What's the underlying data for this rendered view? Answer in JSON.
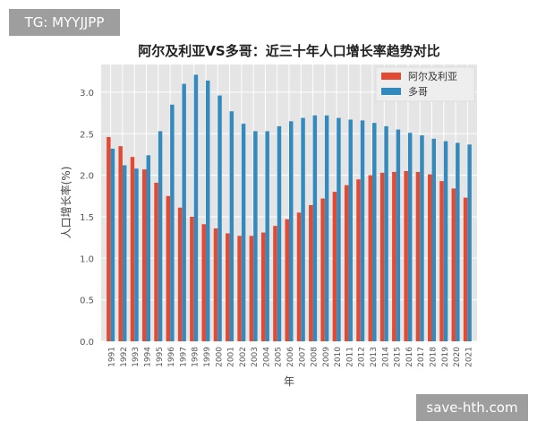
{
  "watermarks": {
    "top_left": "TG: MYYJJPP",
    "bottom_right": "save-hth.com"
  },
  "chart_data": {
    "type": "bar",
    "title": "阿尔及利亚VS多哥：近三十年人口增长率趋势对比",
    "xlabel": "年",
    "ylabel": "人口增长率(%)",
    "ylim": [
      0,
      3.3
    ],
    "yticks": [
      "0.0",
      "0.5",
      "1.0",
      "1.5",
      "2.0",
      "2.5",
      "3.0"
    ],
    "grid": true,
    "legend": "top-right",
    "categories": [
      "1991",
      "1992",
      "1993",
      "1994",
      "1995",
      "1996",
      "1997",
      "1998",
      "1999",
      "2000",
      "2001",
      "2002",
      "2003",
      "2004",
      "2005",
      "2006",
      "2007",
      "2008",
      "2009",
      "2010",
      "2011",
      "2012",
      "2013",
      "2014",
      "2015",
      "2016",
      "2017",
      "2018",
      "2019",
      "2020",
      "2021"
    ],
    "series": [
      {
        "name": "阿尔及利亚",
        "color": "#e24a33",
        "values": [
          2.46,
          2.35,
          2.22,
          2.07,
          1.91,
          1.75,
          1.61,
          1.5,
          1.41,
          1.36,
          1.3,
          1.27,
          1.27,
          1.31,
          1.39,
          1.47,
          1.55,
          1.64,
          1.72,
          1.8,
          1.88,
          1.95,
          2.0,
          2.03,
          2.04,
          2.05,
          2.04,
          2.01,
          1.93,
          1.84,
          1.73
        ]
      },
      {
        "name": "多哥",
        "color": "#348abd",
        "values": [
          2.32,
          2.12,
          2.08,
          2.24,
          2.53,
          2.85,
          3.1,
          3.21,
          3.14,
          2.96,
          2.77,
          2.62,
          2.53,
          2.53,
          2.59,
          2.65,
          2.69,
          2.72,
          2.72,
          2.69,
          2.67,
          2.66,
          2.63,
          2.59,
          2.55,
          2.51,
          2.48,
          2.44,
          2.41,
          2.39,
          2.37
        ]
      }
    ]
  }
}
